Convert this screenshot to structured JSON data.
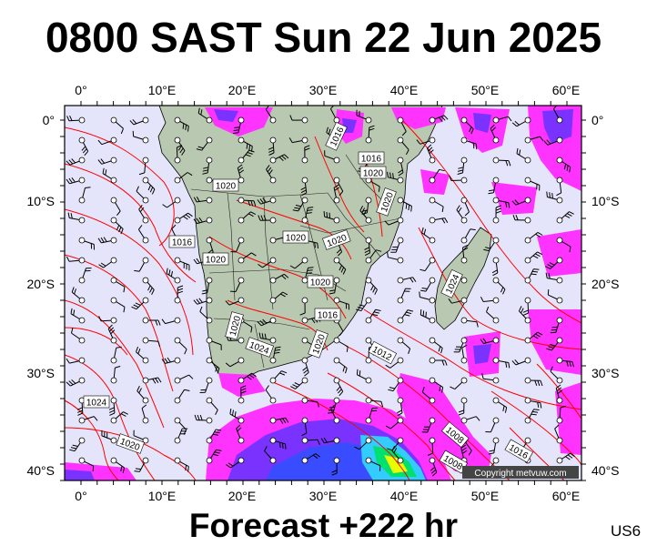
{
  "header": {
    "title": "0800 SAST Sun 22 Jun 2025"
  },
  "footer": {
    "subtitle": "Forecast +222 hr",
    "region_code": "US6"
  },
  "map": {
    "longitude_labels": [
      "0°",
      "10°E",
      "20°E",
      "30°E",
      "40°E",
      "50°E",
      "60°E"
    ],
    "latitude_labels": [
      "0°",
      "10°S",
      "20°S",
      "30°S",
      "40°S"
    ],
    "isobar_labels": [
      "1016",
      "1020",
      "1016",
      "1016",
      "1020",
      "1020",
      "1020",
      "1020",
      "1020",
      "1020",
      "1016",
      "1012",
      "1024",
      "1020",
      "1024",
      "1020",
      "1024",
      "1020",
      "1008",
      "1016",
      "1008"
    ],
    "copyright": "Copyright metvuw.com",
    "colors": {
      "ocean": "#e4e4fb",
      "land": "#b9c8b0",
      "isobar": "#ff0000",
      "rain": "#ff33ff",
      "heavy_rain": "#7a33ff"
    }
  }
}
